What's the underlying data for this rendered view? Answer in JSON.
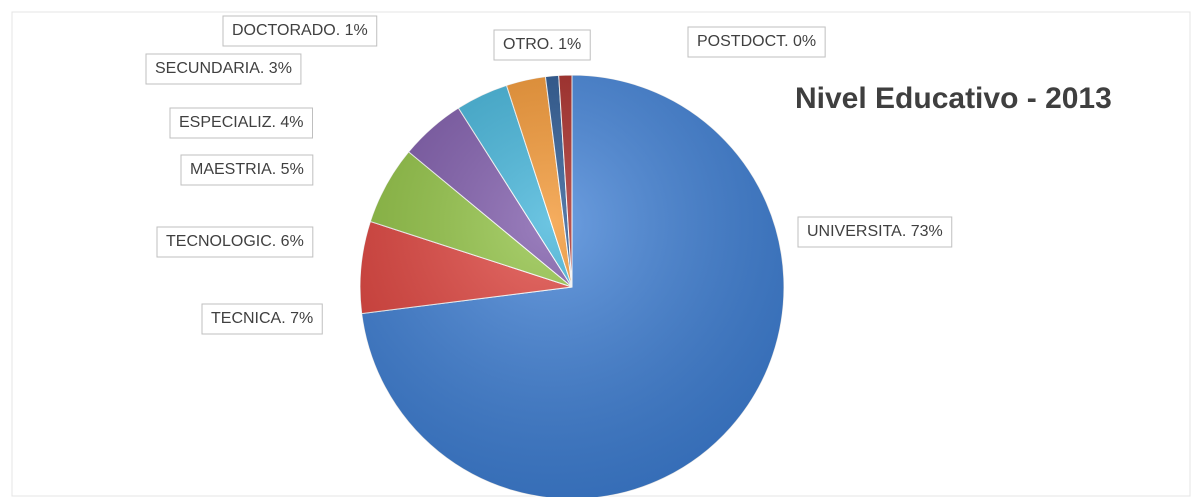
{
  "chart_data": {
    "type": "pie",
    "title": "Nivel Educativo - 2013",
    "values": [
      73,
      7,
      6,
      5,
      4,
      3,
      1,
      1,
      0
    ],
    "value_labels": [
      "UNIVERSITA. 73%",
      "TECNICA. 7%",
      "TECNOLOGIC. 6%",
      "MAESTRIA. 5%",
      "ESPECIALIZ. 4%",
      "SECUNDARIA. 3%",
      "DOCTORADO. 1%",
      "OTRO. 1%",
      "POSTDOCT. 0%"
    ],
    "colors": [
      "#3d7fd6",
      "#e0403a",
      "#8fc23f",
      "#7a55a8",
      "#3bb1d8",
      "#f2922a",
      "#1f4f8c",
      "#a3201c",
      "#6b8fc9"
    ]
  }
}
